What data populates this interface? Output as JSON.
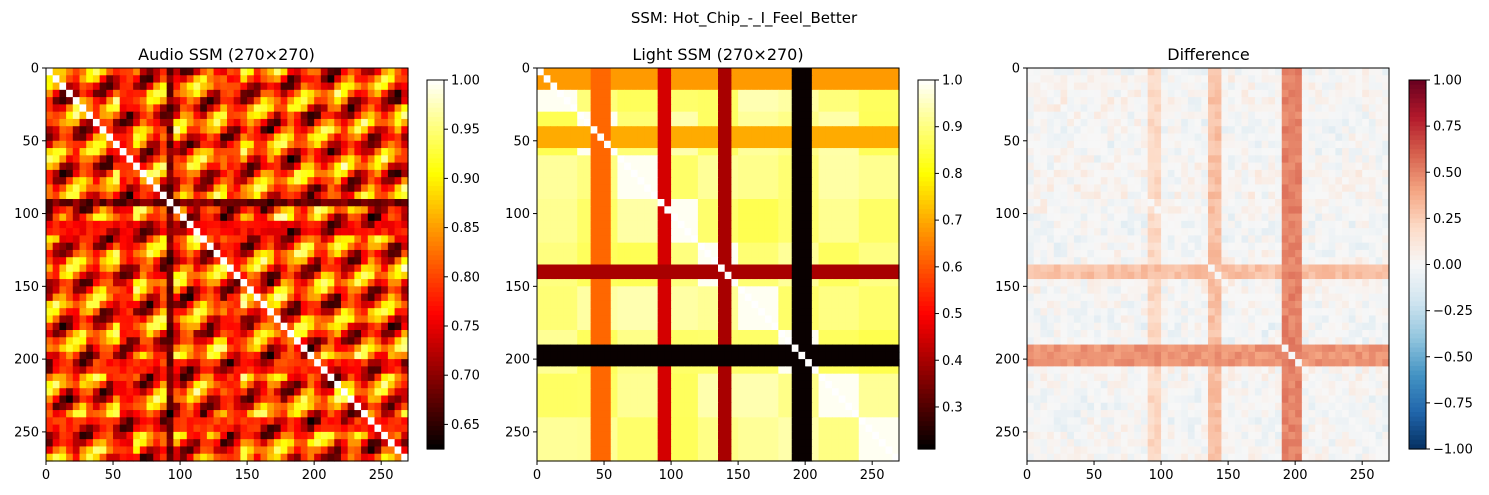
{
  "figure": {
    "title": "SSM: Hot_Chip_-_I_Feel_Better"
  },
  "chart_data": [
    {
      "type": "heatmap",
      "title": "Audio SSM (270×270)",
      "size": 270,
      "colormap": "hot",
      "xlim": [
        0,
        270
      ],
      "ylim": [
        270,
        0
      ],
      "xticks": [
        0,
        50,
        100,
        150,
        200,
        250
      ],
      "yticks": [
        0,
        50,
        100,
        150,
        200,
        250
      ],
      "xtick_labels": [
        "0",
        "50",
        "100",
        "150",
        "200",
        "250"
      ],
      "ytick_labels": [
        "0",
        "50",
        "100",
        "150",
        "200",
        "250"
      ],
      "colorbar": {
        "range": [
          0.625,
          1.0
        ],
        "ticks": [
          0.65,
          0.7,
          0.75,
          0.8,
          0.85,
          0.9,
          0.95,
          1.0
        ],
        "tick_labels": [
          "0.65",
          "0.70",
          "0.75",
          "0.80",
          "0.85",
          "0.90",
          "0.95",
          "1.00"
        ]
      },
      "bands": [
        {
          "axis": "col",
          "center": 93,
          "width": 3,
          "value": 0.66
        },
        {
          "axis": "row",
          "center": 93,
          "width": 3,
          "value": 0.66
        },
        {
          "axis": "row",
          "center": 110,
          "width": 3,
          "value": 0.74
        },
        {
          "axis": "col",
          "center": 60,
          "width": 3,
          "value": 0.75
        },
        {
          "axis": "col",
          "center": 140,
          "width": 2,
          "value": 0.76
        },
        {
          "axis": "row",
          "center": 205,
          "width": 2,
          "value": 0.76
        },
        {
          "axis": "row",
          "center": 245,
          "width": 2,
          "value": 0.76
        }
      ]
    },
    {
      "type": "heatmap",
      "title": "Light SSM (270×270)",
      "size": 270,
      "colormap": "hot",
      "xlim": [
        0,
        270
      ],
      "ylim": [
        270,
        0
      ],
      "xticks": [
        0,
        50,
        100,
        150,
        200,
        250
      ],
      "yticks": [
        0,
        50,
        100,
        150,
        200,
        250
      ],
      "xtick_labels": [
        "0",
        "50",
        "100",
        "150",
        "200",
        "250"
      ],
      "ytick_labels": [
        "0",
        "50",
        "100",
        "150",
        "200",
        "250"
      ],
      "colorbar": {
        "range": [
          0.21,
          1.0
        ],
        "ticks": [
          0.3,
          0.4,
          0.5,
          0.6,
          0.7,
          0.8,
          0.9,
          1.0
        ],
        "tick_labels": [
          "0.3",
          "0.4",
          "0.5",
          "0.6",
          "0.7",
          "0.8",
          "0.9",
          "1.0"
        ]
      },
      "bands": [
        {
          "axis": "col",
          "center": 199,
          "width": 7,
          "value": 0.22
        },
        {
          "axis": "row",
          "center": 199,
          "width": 7,
          "value": 0.22
        },
        {
          "axis": "col",
          "center": 140,
          "width": 3,
          "value": 0.4
        },
        {
          "axis": "row",
          "center": 140,
          "width": 3,
          "value": 0.4
        },
        {
          "axis": "col",
          "center": 95,
          "width": 3,
          "value": 0.45
        },
        {
          "axis": "col",
          "center": 48,
          "width": 6,
          "value": 0.62
        },
        {
          "axis": "row",
          "center": 8,
          "width": 8,
          "value": 0.68
        },
        {
          "axis": "row",
          "center": 48,
          "width": 6,
          "value": 0.7
        }
      ]
    },
    {
      "type": "heatmap",
      "title": "Difference",
      "size": 270,
      "colormap": "RdBu_r",
      "xlim": [
        0,
        270
      ],
      "ylim": [
        270,
        0
      ],
      "xticks": [
        0,
        50,
        100,
        150,
        200,
        250
      ],
      "yticks": [
        0,
        50,
        100,
        150,
        200,
        250
      ],
      "xtick_labels": [
        "0",
        "50",
        "100",
        "150",
        "200",
        "250"
      ],
      "ytick_labels": [
        "0",
        "50",
        "100",
        "150",
        "200",
        "250"
      ],
      "colorbar": {
        "range": [
          -1.0,
          1.0
        ],
        "ticks": [
          -1.0,
          -0.75,
          -0.5,
          -0.25,
          0.0,
          0.25,
          0.5,
          0.75,
          1.0
        ],
        "tick_labels": [
          "−1.00",
          "−0.75",
          "−0.50",
          "−0.25",
          "0.00",
          "0.25",
          "0.50",
          "0.75",
          "1.00"
        ]
      },
      "bands": [
        {
          "axis": "col",
          "center": 199,
          "width": 7,
          "value": 0.55
        },
        {
          "axis": "row",
          "center": 199,
          "width": 7,
          "value": 0.5
        },
        {
          "axis": "col",
          "center": 140,
          "width": 3,
          "value": 0.35
        },
        {
          "axis": "row",
          "center": 140,
          "width": 3,
          "value": 0.35
        },
        {
          "axis": "col",
          "center": 95,
          "width": 3,
          "value": 0.25
        }
      ]
    }
  ]
}
